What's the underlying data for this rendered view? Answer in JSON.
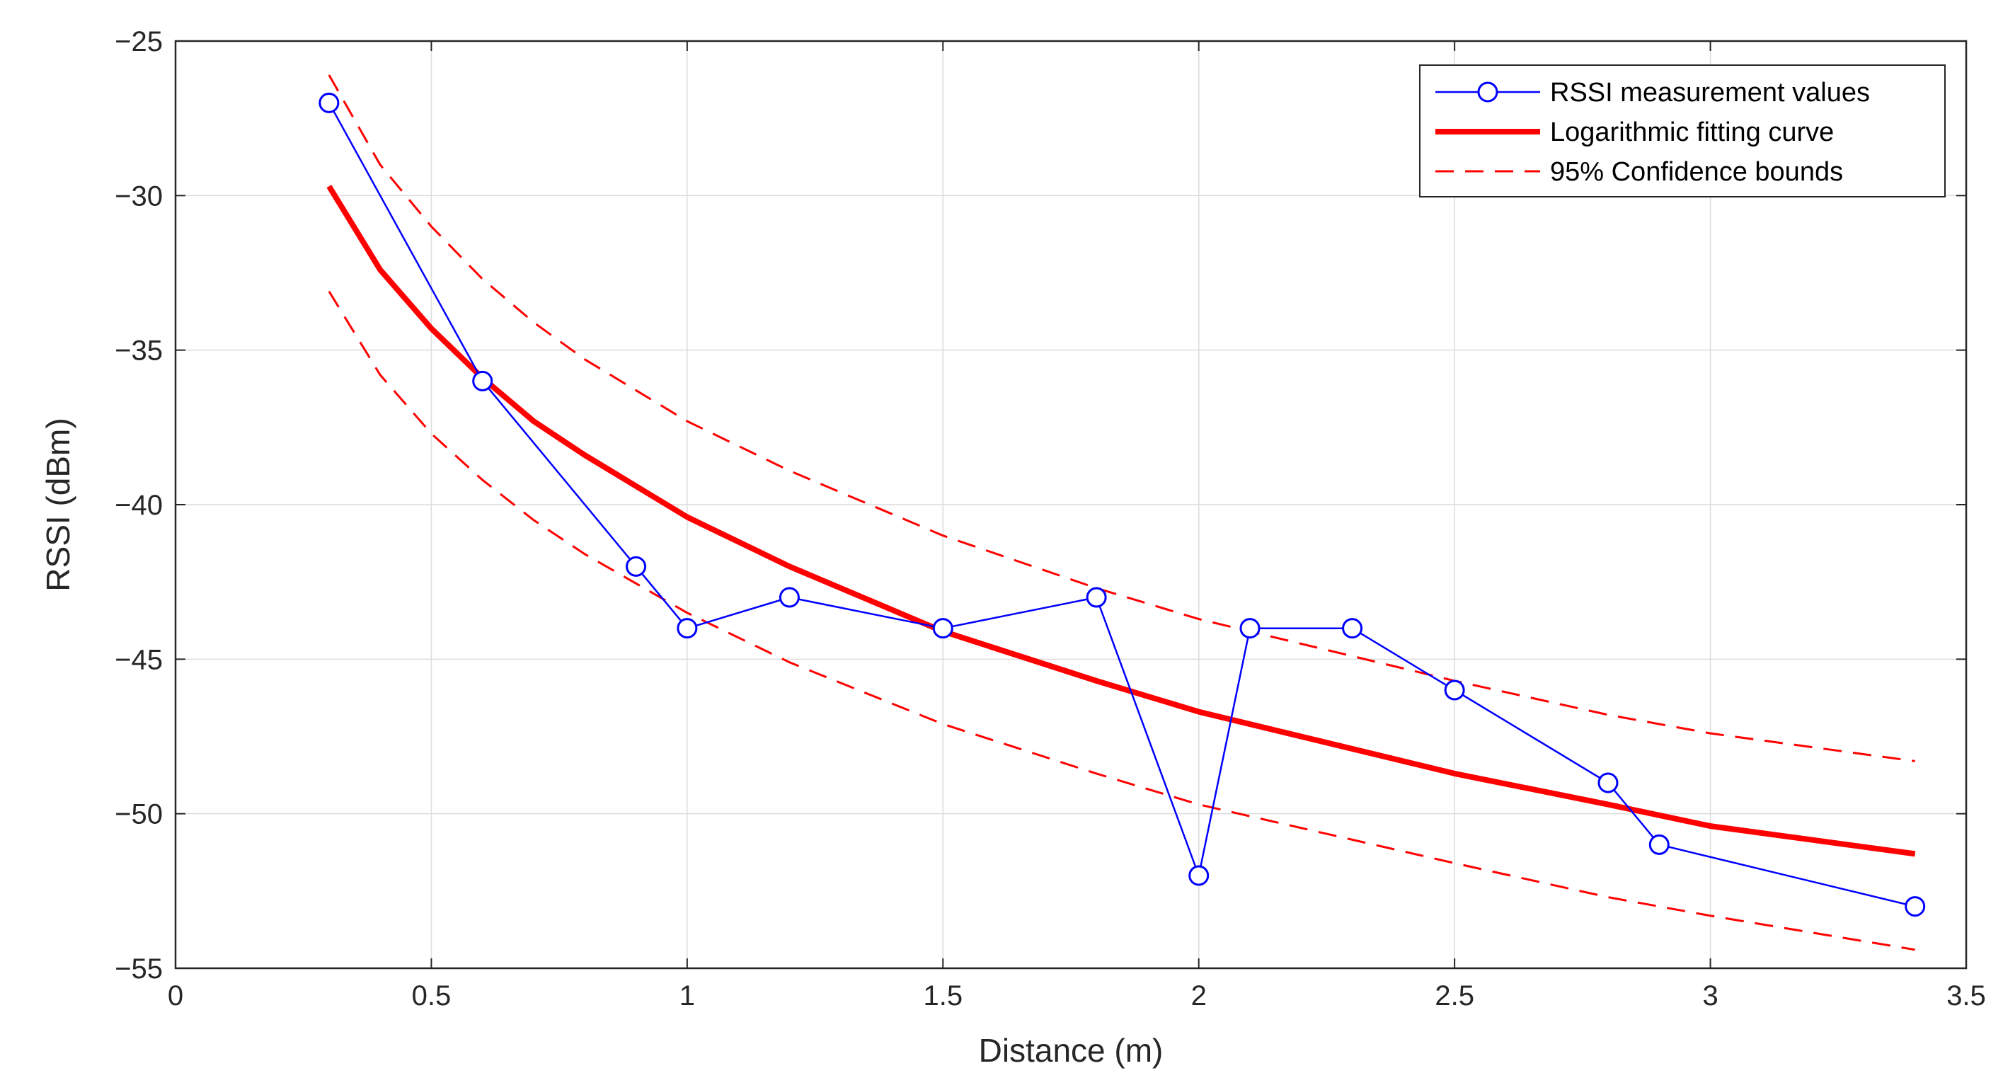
{
  "chart_data": {
    "type": "line",
    "title": "",
    "xlabel": "Distance (m)",
    "ylabel": "RSSI (dBm)",
    "xlim": [
      0,
      3.5
    ],
    "ylim": [
      -55,
      -25
    ],
    "xticks": [
      0,
      0.5,
      1,
      1.5,
      2,
      2.5,
      3,
      3.5
    ],
    "xtick_labels": [
      "0",
      "0.5",
      "1",
      "1.5",
      "2",
      "2.5",
      "3",
      "3.5"
    ],
    "yticks": [
      -25,
      -30,
      -35,
      -40,
      -45,
      -50,
      -55
    ],
    "ytick_labels": [
      "−25",
      "−30",
      "−35",
      "−40",
      "−45",
      "−50",
      "−55"
    ],
    "grid": true,
    "legend_position": "top-right",
    "series": [
      {
        "name": "RSSI measurement values",
        "style": "line-marker",
        "color": "#0000ff",
        "x": [
          0.3,
          0.6,
          0.9,
          1.0,
          1.2,
          1.5,
          1.8,
          2.0,
          2.1,
          2.3,
          2.5,
          2.8,
          2.9,
          3.4
        ],
        "values": [
          -27,
          -36,
          -42,
          -44,
          -43,
          -44,
          -43,
          -52,
          -44,
          -44,
          -46,
          -49,
          -51,
          -53
        ]
      },
      {
        "name": "Logarithmic fitting curve",
        "style": "solid-thick",
        "color": "#ff0000",
        "x": [
          0.3,
          0.4,
          0.5,
          0.6,
          0.7,
          0.8,
          1.0,
          1.2,
          1.5,
          1.8,
          2.0,
          2.5,
          2.8,
          3.0,
          3.4
        ],
        "values": [
          -29.7,
          -32.4,
          -34.3,
          -35.9,
          -37.3,
          -38.4,
          -40.4,
          -42.0,
          -44.1,
          -45.7,
          -46.7,
          -48.7,
          -49.7,
          -50.4,
          -51.3
        ]
      },
      {
        "name": "95% Confidence bounds",
        "style": "dashed",
        "color": "#ff0000",
        "x": [
          0.3,
          0.4,
          0.5,
          0.6,
          0.7,
          0.8,
          1.0,
          1.2,
          1.5,
          1.8,
          2.0,
          2.5,
          2.8,
          3.0,
          3.4
        ],
        "values": [
          -26.1,
          -29.0,
          -31.0,
          -32.7,
          -34.1,
          -35.3,
          -37.3,
          -38.9,
          -41.0,
          -42.7,
          -43.7,
          -45.7,
          -46.8,
          -47.4,
          -48.3
        ]
      },
      {
        "name": "95% Confidence bounds",
        "style": "dashed",
        "color": "#ff0000",
        "legend": false,
        "x": [
          0.3,
          0.4,
          0.5,
          0.6,
          0.7,
          0.8,
          1.0,
          1.2,
          1.5,
          1.8,
          2.0,
          2.5,
          2.8,
          3.0,
          3.4
        ],
        "values": [
          -33.1,
          -35.8,
          -37.7,
          -39.2,
          -40.5,
          -41.6,
          -43.5,
          -45.1,
          -47.1,
          -48.7,
          -49.7,
          -51.6,
          -52.7,
          -53.3,
          -54.4
        ]
      }
    ]
  }
}
